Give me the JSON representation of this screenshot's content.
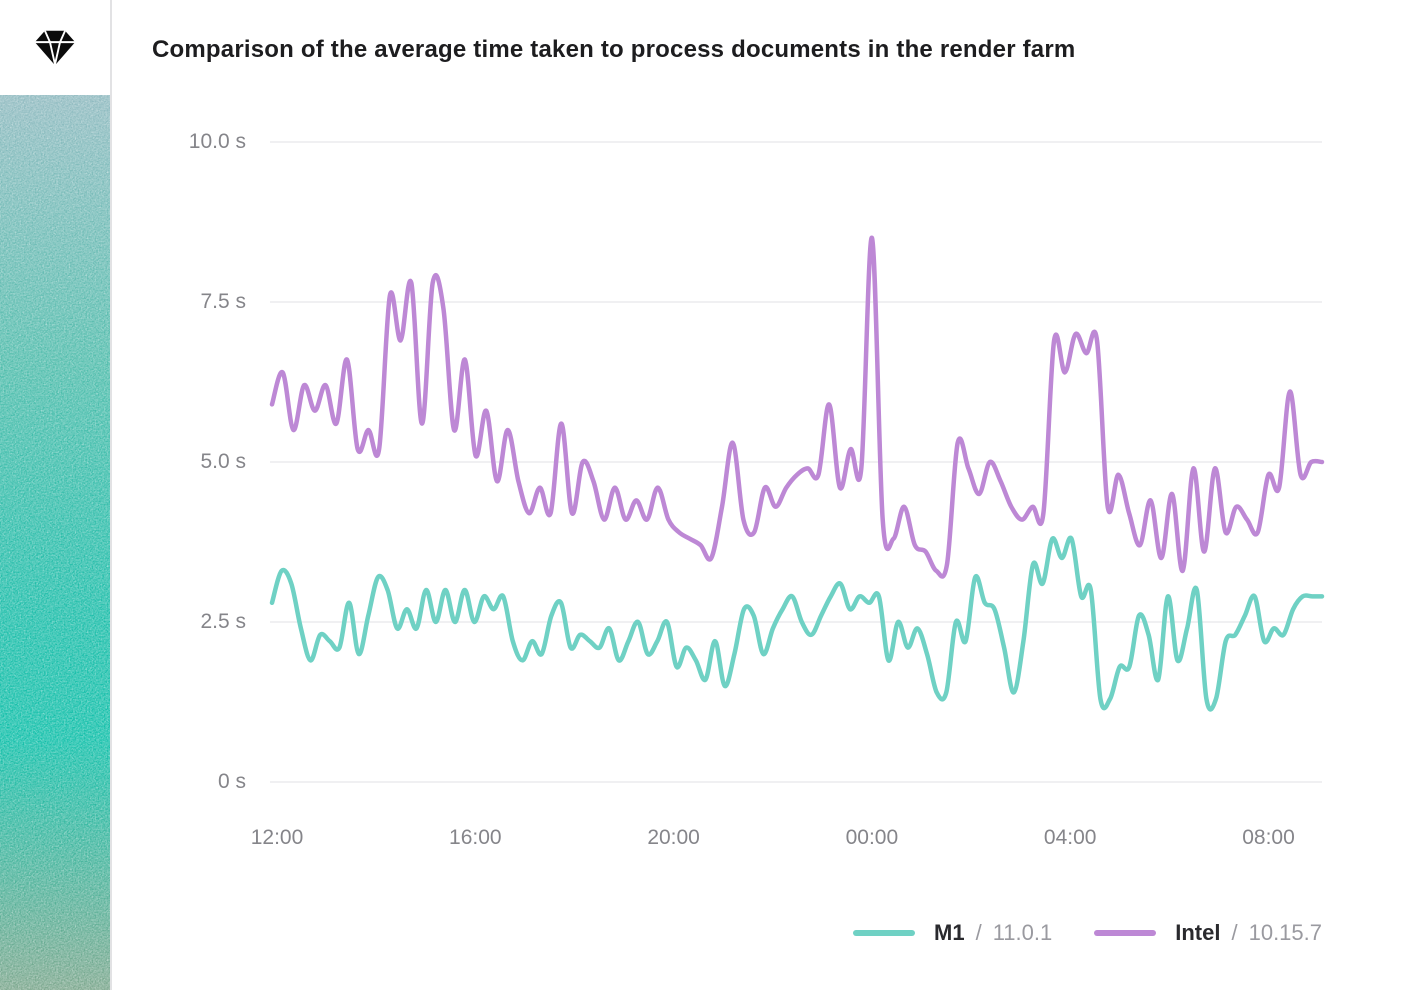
{
  "app": {
    "logo_icon": "diamond-gem-icon"
  },
  "sidebar": {
    "gradient_colors": [
      "#90bac0",
      "#1cbda9",
      "#10bfa9",
      "#7ca78d"
    ],
    "texture": "noise"
  },
  "chart_data": {
    "type": "line",
    "title": "Comparison of the average time taken to process documents in the render farm",
    "y_axis": {
      "unit": "s",
      "min": 0,
      "max": 10,
      "tick_values": [
        10,
        7.5,
        5,
        2.5,
        0
      ],
      "tick_labels": [
        "10.0 s",
        "7.5 s",
        "5.0 s",
        "2.5 s",
        "0 s"
      ]
    },
    "x_axis": {
      "start": "12:00",
      "tick_interval_hours": 4,
      "tick_labels": [
        "12:00",
        "16:00",
        "20:00",
        "00:00",
        "04:00",
        "08:00"
      ]
    },
    "grid": "horizontal gridlines only, light gray",
    "legend_position": "bottom-right",
    "series": [
      {
        "name": "M1",
        "sep": "/",
        "version": "11.0.1",
        "color": "#6fd1c4",
        "values": [
          2.8,
          3.3,
          3.1,
          2.4,
          1.9,
          2.3,
          2.2,
          2.1,
          2.8,
          2.0,
          2.6,
          3.2,
          3.0,
          2.4,
          2.7,
          2.4,
          3.0,
          2.5,
          3.0,
          2.5,
          3.0,
          2.5,
          2.9,
          2.7,
          2.9,
          2.2,
          1.9,
          2.2,
          2.0,
          2.6,
          2.8,
          2.1,
          2.3,
          2.2,
          2.1,
          2.4,
          1.9,
          2.2,
          2.5,
          2.0,
          2.2,
          2.5,
          1.8,
          2.1,
          1.9,
          1.6,
          2.2,
          1.5,
          2.0,
          2.7,
          2.6,
          2.0,
          2.4,
          2.7,
          2.9,
          2.5,
          2.3,
          2.6,
          2.9,
          3.1,
          2.7,
          2.9,
          2.8,
          2.9,
          1.9,
          2.5,
          2.1,
          2.4,
          2.0,
          1.4,
          1.4,
          2.5,
          2.2,
          3.2,
          2.8,
          2.7,
          2.1,
          1.4,
          2.2,
          3.4,
          3.1,
          3.8,
          3.5,
          3.8,
          2.9,
          3.0,
          1.3,
          1.3,
          1.8,
          1.8,
          2.6,
          2.3,
          1.6,
          2.9,
          1.9,
          2.4,
          3.0,
          1.3,
          1.3,
          2.2,
          2.3,
          2.6,
          2.9,
          2.2,
          2.4,
          2.3,
          2.7,
          2.9,
          2.9,
          2.9
        ]
      },
      {
        "name": "Intel",
        "sep": "/",
        "version": "10.15.7",
        "color": "#bd88d5",
        "values": [
          5.9,
          6.4,
          5.5,
          6.2,
          5.8,
          6.2,
          5.6,
          6.6,
          5.2,
          5.5,
          5.2,
          7.6,
          6.9,
          7.8,
          5.6,
          7.8,
          7.4,
          5.5,
          6.6,
          5.1,
          5.8,
          4.7,
          5.5,
          4.7,
          4.2,
          4.6,
          4.2,
          5.6,
          4.2,
          5.0,
          4.7,
          4.1,
          4.6,
          4.1,
          4.4,
          4.1,
          4.6,
          4.1,
          3.9,
          3.8,
          3.7,
          3.5,
          4.3,
          5.3,
          4.1,
          3.9,
          4.6,
          4.3,
          4.6,
          4.8,
          4.9,
          4.8,
          5.9,
          4.6,
          5.2,
          4.9,
          8.5,
          4.1,
          3.8,
          4.3,
          3.7,
          3.6,
          3.3,
          3.4,
          5.3,
          4.9,
          4.5,
          5.0,
          4.7,
          4.3,
          4.1,
          4.3,
          4.2,
          6.9,
          6.4,
          7.0,
          6.7,
          6.9,
          4.3,
          4.8,
          4.2,
          3.7,
          4.4,
          3.5,
          4.5,
          3.3,
          4.9,
          3.6,
          4.9,
          3.9,
          4.3,
          4.1,
          3.9,
          4.8,
          4.6,
          6.1,
          4.8,
          5.0,
          5.0
        ]
      }
    ]
  }
}
